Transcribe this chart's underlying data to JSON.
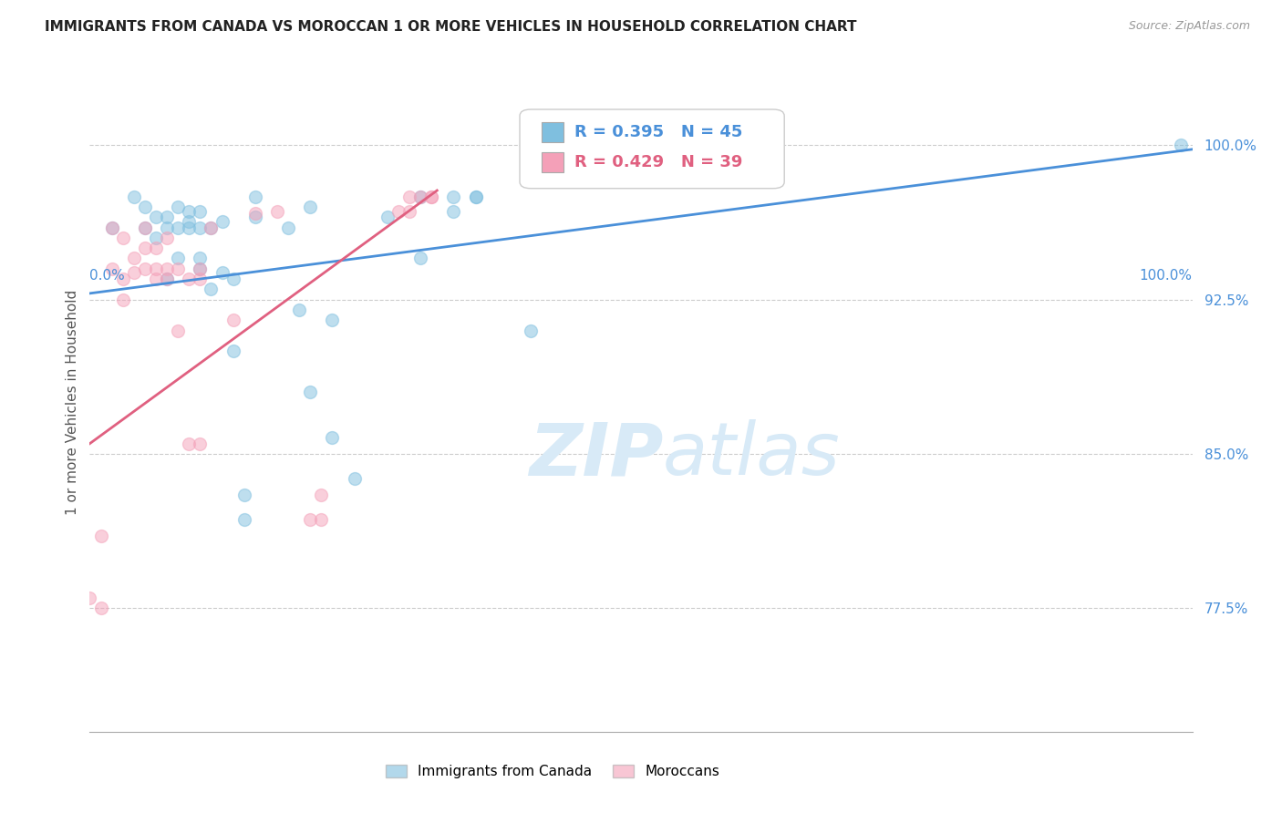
{
  "title": "IMMIGRANTS FROM CANADA VS MOROCCAN 1 OR MORE VEHICLES IN HOUSEHOLD CORRELATION CHART",
  "source": "Source: ZipAtlas.com",
  "ylabel": "1 or more Vehicles in Household",
  "ytick_labels": [
    "77.5%",
    "85.0%",
    "92.5%",
    "100.0%"
  ],
  "ytick_values": [
    0.775,
    0.85,
    0.925,
    1.0
  ],
  "xlim": [
    0.0,
    1.0
  ],
  "ylim": [
    0.715,
    1.035
  ],
  "legend_blue_label": "Immigrants from Canada",
  "legend_pink_label": "Moroccans",
  "R_blue": "R = 0.395",
  "N_blue": "N = 45",
  "R_pink": "R = 0.429",
  "N_pink": "N = 39",
  "blue_color": "#7fbfdf",
  "pink_color": "#f4a0b8",
  "blue_line_color": "#4a90d9",
  "pink_line_color": "#e06080",
  "blue_text_color": "#4a90d9",
  "pink_text_color": "#e06080",
  "watermark_color": "#d8eaf7",
  "blue_scatter_x": [
    0.02,
    0.04,
    0.05,
    0.05,
    0.06,
    0.06,
    0.07,
    0.07,
    0.07,
    0.08,
    0.08,
    0.08,
    0.09,
    0.09,
    0.09,
    0.1,
    0.1,
    0.1,
    0.1,
    0.11,
    0.11,
    0.12,
    0.12,
    0.13,
    0.13,
    0.14,
    0.14,
    0.15,
    0.15,
    0.18,
    0.19,
    0.2,
    0.2,
    0.22,
    0.22,
    0.24,
    0.27,
    0.3,
    0.3,
    0.33,
    0.33,
    0.35,
    0.35,
    0.4,
    0.99
  ],
  "blue_scatter_y": [
    0.96,
    0.975,
    0.96,
    0.97,
    0.955,
    0.965,
    0.935,
    0.96,
    0.965,
    0.945,
    0.96,
    0.97,
    0.96,
    0.963,
    0.968,
    0.94,
    0.945,
    0.96,
    0.968,
    0.93,
    0.96,
    0.938,
    0.963,
    0.9,
    0.935,
    0.818,
    0.83,
    0.965,
    0.975,
    0.96,
    0.92,
    0.88,
    0.97,
    0.858,
    0.915,
    0.838,
    0.965,
    0.945,
    0.975,
    0.968,
    0.975,
    0.975,
    0.975,
    0.91,
    1.0
  ],
  "pink_scatter_x": [
    0.0,
    0.01,
    0.01,
    0.02,
    0.02,
    0.03,
    0.03,
    0.03,
    0.04,
    0.04,
    0.05,
    0.05,
    0.05,
    0.06,
    0.06,
    0.06,
    0.07,
    0.07,
    0.07,
    0.08,
    0.08,
    0.09,
    0.09,
    0.1,
    0.1,
    0.1,
    0.11,
    0.13,
    0.15,
    0.17,
    0.2,
    0.21,
    0.21,
    0.28,
    0.29,
    0.29,
    0.3,
    0.31,
    0.31
  ],
  "pink_scatter_y": [
    0.78,
    0.775,
    0.81,
    0.94,
    0.96,
    0.925,
    0.935,
    0.955,
    0.938,
    0.945,
    0.94,
    0.95,
    0.96,
    0.935,
    0.94,
    0.95,
    0.935,
    0.94,
    0.955,
    0.91,
    0.94,
    0.855,
    0.935,
    0.855,
    0.935,
    0.94,
    0.96,
    0.915,
    0.967,
    0.968,
    0.818,
    0.818,
    0.83,
    0.968,
    0.968,
    0.975,
    0.975,
    0.975,
    0.975
  ],
  "blue_trendline": [
    0.0,
    1.0,
    0.928,
    0.998
  ],
  "pink_trendline": [
    0.0,
    0.315,
    0.855,
    0.978
  ]
}
